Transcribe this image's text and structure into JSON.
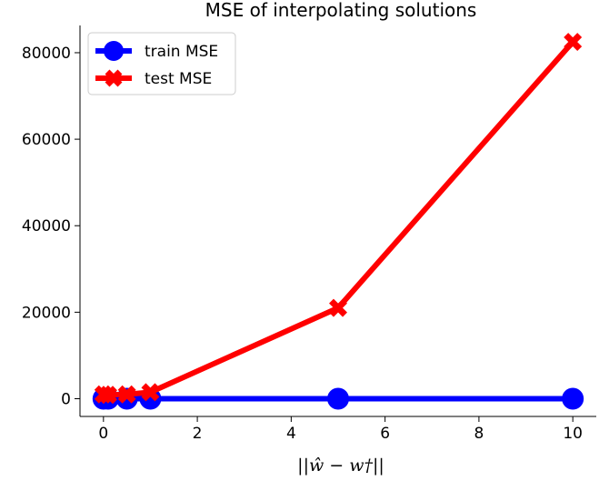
{
  "chart_data": {
    "type": "line",
    "title": "MSE of interpolating solutions",
    "xlabel": "||ŵ − w†||",
    "ylabel": "",
    "xlim": [
      -0.5,
      10.5
    ],
    "ylim": [
      -4100,
      86300
    ],
    "xticks": [
      0,
      2,
      4,
      6,
      8,
      10
    ],
    "yticks": [
      0,
      20000,
      40000,
      60000,
      80000
    ],
    "legend_placement": "top-left",
    "grid": false,
    "series": [
      {
        "name": "train MSE",
        "color": "#0000ff",
        "marker": "circle",
        "x": [
          0,
          0.1,
          0.5,
          1,
          5,
          10
        ],
        "y": [
          0,
          0,
          0,
          0,
          0,
          0
        ]
      },
      {
        "name": "test MSE",
        "color": "#ff0000",
        "marker": "x",
        "x": [
          0,
          0.1,
          0.5,
          1,
          5,
          10
        ],
        "y": [
          1000,
          900,
          1000,
          1500,
          21000,
          82500
        ]
      }
    ]
  }
}
